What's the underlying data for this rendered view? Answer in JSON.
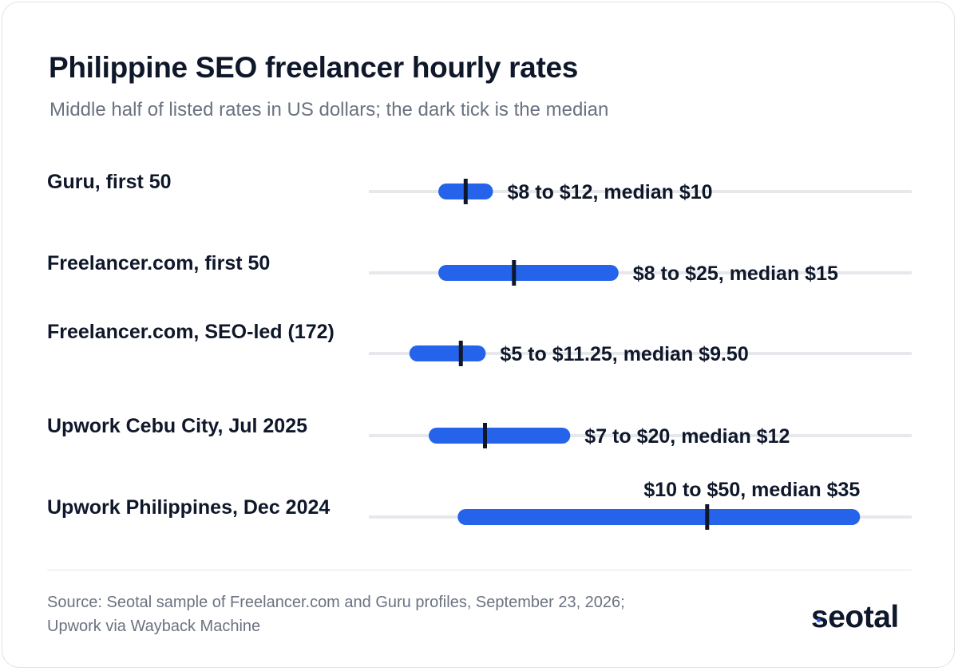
{
  "title": "Philippine SEO freelancer hourly rates",
  "subtitle": "Middle half of listed rates in US dollars; the dark tick is the median",
  "chart_data": {
    "type": "range",
    "x_unit": "US dollars per hour",
    "grid": false,
    "series": [
      {
        "label": "Guru, first 50",
        "low": 8,
        "high": 12,
        "median": 10,
        "value_label": "$8 to $12, median $10"
      },
      {
        "label": "Freelancer.com, first 50",
        "low": 8,
        "high": 25,
        "median": 15,
        "value_label": "$8 to $25, median $15"
      },
      {
        "label": "Freelancer.com, SEO-led (172)",
        "low": 5,
        "high": 11.25,
        "median": 9.5,
        "value_label": "$5 to $11.25, median $9.50"
      },
      {
        "label": "Upwork Cebu City, Jul 2025",
        "low": 7,
        "high": 20,
        "median": 12,
        "value_label": "$7 to $20, median $12"
      },
      {
        "label": "Upwork Philippines, Dec 2024",
        "low": 10,
        "high": 50,
        "median": 35,
        "value_label": "$10 to $50, median $35"
      }
    ]
  },
  "colors": {
    "range_bar": "#2563eb",
    "median_tick": "#0f172a",
    "track": "#e6e8ec",
    "text_primary": "#0f172a",
    "text_secondary": "#6b7280"
  },
  "source": {
    "line1": "Source: Seotal sample of Freelancer.com and Guru profiles, September 23, 2026;",
    "line2": "Upwork via Wayback Machine"
  },
  "logo": {
    "text": "seotal"
  }
}
